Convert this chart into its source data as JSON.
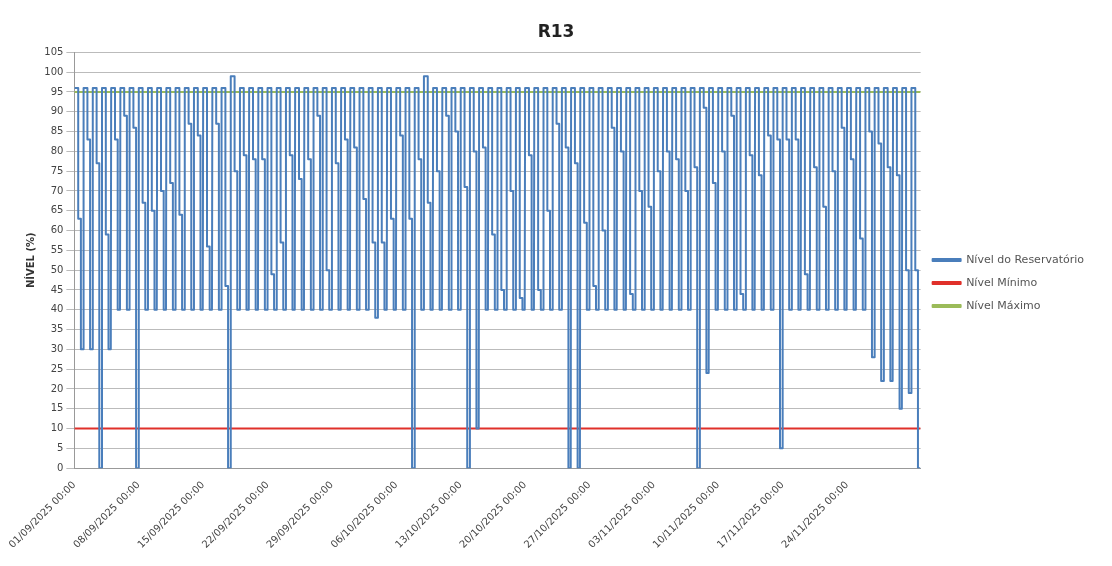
{
  "chart_data": {
    "type": "line",
    "title": "R13",
    "ylabel": "NÍVEL (%)",
    "xlim": [
      "2025-09-01",
      "2025-12-02"
    ],
    "ylim": [
      0,
      105
    ],
    "yticks": [
      0,
      5,
      10,
      15,
      20,
      25,
      30,
      35,
      40,
      45,
      50,
      55,
      60,
      65,
      70,
      75,
      80,
      85,
      90,
      95,
      100,
      105
    ],
    "xticks": [
      {
        "value": "2025-09-01",
        "label": "01/09/2025 00:00"
      },
      {
        "value": "2025-09-08",
        "label": "08/09/2025 00:00"
      },
      {
        "value": "2025-09-15",
        "label": "15/09/2025 00:00"
      },
      {
        "value": "2025-09-22",
        "label": "22/09/2025 00:00"
      },
      {
        "value": "2025-09-29",
        "label": "29/09/2025 00:00"
      },
      {
        "value": "2025-10-06",
        "label": "06/10/2025 00:00"
      },
      {
        "value": "2025-10-13",
        "label": "13/10/2025 00:00"
      },
      {
        "value": "2025-10-20",
        "label": "20/10/2025 00:00"
      },
      {
        "value": "2025-10-27",
        "label": "27/10/2025 00:00"
      },
      {
        "value": "2025-11-03",
        "label": "03/11/2025 00:00"
      },
      {
        "value": "2025-11-10",
        "label": "10/11/2025 00:00"
      },
      {
        "value": "2025-11-17",
        "label": "17/11/2025 00:00"
      },
      {
        "value": "2025-11-24",
        "label": "24/11/2025 00:00"
      }
    ],
    "grid": "y",
    "legend": "right",
    "marker": "none",
    "line_style": "solid",
    "series": [
      {
        "name": "Nível do Reservatório",
        "color": "#4a7ebb",
        "type": "line",
        "x": [
          "2025-09-01T00:00",
          "2025-09-01T10:00",
          "2025-09-01T10:00",
          "2025-09-01T17:00",
          "2025-09-01T17:00",
          "2025-09-01T23:00",
          "2025-09-02T00:00",
          "2025-09-02T10:00",
          "2025-09-02T10:00",
          "2025-09-02T17:00",
          "2025-09-02T17:00",
          "2025-09-02T23:00",
          "2025-09-03T00:00",
          "2025-09-03T10:00",
          "2025-09-03T10:00",
          "2025-09-03T17:00",
          "2025-09-03T17:00",
          "2025-09-03T23:00",
          "2025-09-04T00:00",
          "2025-09-04T10:00",
          "2025-09-04T10:00",
          "2025-09-04T17:00",
          "2025-09-04T17:00",
          "2025-09-04T23:00",
          "2025-09-05T00:00",
          "2025-09-05T10:00",
          "2025-09-05T10:00",
          "2025-09-05T17:00",
          "2025-09-05T17:00",
          "2025-09-05T23:00",
          "2025-09-06T00:00",
          "2025-09-06T10:00",
          "2025-09-06T10:00",
          "2025-09-06T17:00",
          "2025-09-06T17:00",
          "2025-09-06T23:00",
          "2025-09-07T00:00",
          "2025-09-07T10:00",
          "2025-09-07T10:00",
          "2025-09-07T17:00",
          "2025-09-07T17:00",
          "2025-09-07T23:00",
          "2025-09-08T00:00",
          "2025-09-08T10:00",
          "2025-09-08T10:00",
          "2025-09-08T17:00",
          "2025-09-08T17:00",
          "2025-09-08T23:00",
          "2025-09-09T00:00",
          "2025-09-09T10:00",
          "2025-09-09T10:00",
          "2025-09-09T17:00",
          "2025-09-09T17:00",
          "2025-09-09T23:00",
          "2025-09-10T00:00",
          "2025-09-10T10:00",
          "2025-09-10T10:00",
          "2025-09-10T17:00",
          "2025-09-10T17:00",
          "2025-09-10T23:00",
          "2025-09-11T00:00",
          "2025-09-11T10:00",
          "2025-09-11T10:00",
          "2025-09-11T17:00",
          "2025-09-11T17:00",
          "2025-09-11T23:00",
          "2025-09-12T00:00",
          "2025-09-12T10:00",
          "2025-09-12T10:00",
          "2025-09-12T17:00",
          "2025-09-12T17:00",
          "2025-09-12T23:00",
          "2025-09-13T00:00",
          "2025-09-13T10:00",
          "2025-09-13T10:00",
          "2025-09-13T17:00",
          "2025-09-13T17:00",
          "2025-09-13T23:00",
          "2025-09-14T00:00",
          "2025-09-14T10:00",
          "2025-09-14T10:00",
          "2025-09-14T17:00",
          "2025-09-14T17:00",
          "2025-09-14T23:00",
          "2025-09-15T00:00",
          "2025-09-15T10:00",
          "2025-09-15T10:00",
          "2025-09-15T17:00",
          "2025-09-15T17:00",
          "2025-09-15T23:00",
          "2025-09-16T00:00",
          "2025-09-16T10:00",
          "2025-09-16T10:00",
          "2025-09-16T17:00",
          "2025-09-16T17:00",
          "2025-09-16T23:00",
          "2025-09-17T00:00",
          "2025-09-17T10:00",
          "2025-09-17T10:00",
          "2025-09-17T17:00",
          "2025-09-17T17:00",
          "2025-09-17T23:00",
          "2025-09-18T00:00",
          "2025-09-18T10:00",
          "2025-09-18T10:00",
          "2025-09-18T17:00",
          "2025-09-18T17:00",
          "2025-09-18T23:00",
          "2025-09-19T00:00",
          "2025-09-19T10:00",
          "2025-09-19T10:00",
          "2025-09-19T17:00",
          "2025-09-19T17:00",
          "2025-09-19T23:00",
          "2025-09-20T00:00",
          "2025-09-20T10:00",
          "2025-09-20T10:00",
          "2025-09-20T17:00",
          "2025-09-20T17:00",
          "2025-09-20T23:00",
          "2025-09-21T00:00",
          "2025-09-21T10:00",
          "2025-09-21T10:00",
          "2025-09-21T17:00",
          "2025-09-21T17:00",
          "2025-09-21T23:00",
          "2025-09-22T00:00",
          "2025-09-22T10:00",
          "2025-09-22T10:00",
          "2025-09-22T17:00",
          "2025-09-22T17:00",
          "2025-09-22T23:00",
          "2025-09-23T00:00",
          "2025-09-23T10:00",
          "2025-09-23T10:00",
          "2025-09-23T17:00",
          "2025-09-23T17:00",
          "2025-09-23T23:00",
          "2025-09-24T00:00",
          "2025-09-24T10:00",
          "2025-09-24T10:00",
          "2025-09-24T17:00",
          "2025-09-24T17:00",
          "2025-09-24T23:00",
          "2025-09-25T00:00",
          "2025-09-25T10:00",
          "2025-09-25T10:00",
          "2025-09-25T17:00",
          "2025-09-25T17:00",
          "2025-09-25T23:00",
          "2025-09-26T00:00",
          "2025-09-26T10:00",
          "2025-09-26T10:00",
          "2025-09-26T17:00",
          "2025-09-26T17:00",
          "2025-09-26T23:00",
          "2025-09-27T00:00",
          "2025-09-27T10:00",
          "2025-09-27T10:00",
          "2025-09-27T17:00",
          "2025-09-27T17:00",
          "2025-09-27T23:00",
          "2025-09-28T00:00",
          "2025-09-28T10:00",
          "2025-09-28T10:00",
          "2025-09-28T17:00",
          "2025-09-28T17:00",
          "2025-09-28T23:00",
          "2025-09-29T00:00",
          "2025-09-29T10:00",
          "2025-09-29T10:00",
          "2025-09-29T17:00",
          "2025-09-29T17:00",
          "2025-09-29T23:00",
          "2025-09-30T00:00",
          "2025-09-30T10:00",
          "2025-09-30T10:00",
          "2025-09-30T17:00",
          "2025-09-30T17:00",
          "2025-09-30T23:00",
          "2025-10-01T00:00",
          "2025-10-01T10:00",
          "2025-10-01T10:00",
          "2025-10-01T17:00",
          "2025-10-01T17:00",
          "2025-10-01T23:00",
          "2025-10-02T00:00",
          "2025-10-02T10:00",
          "2025-10-02T10:00",
          "2025-10-02T17:00",
          "2025-10-02T17:00",
          "2025-10-02T23:00",
          "2025-10-03T00:00",
          "2025-10-03T10:00",
          "2025-10-03T10:00",
          "2025-10-03T17:00",
          "2025-10-03T17:00",
          "2025-10-03T23:00",
          "2025-10-04T00:00",
          "2025-10-04T10:00",
          "2025-10-04T10:00",
          "2025-10-04T17:00",
          "2025-10-04T17:00",
          "2025-10-04T23:00",
          "2025-10-05T00:00",
          "2025-10-05T10:00",
          "2025-10-05T10:00",
          "2025-10-05T17:00",
          "2025-10-05T17:00",
          "2025-10-05T23:00",
          "2025-10-06T00:00",
          "2025-10-06T10:00",
          "2025-10-06T10:00",
          "2025-10-06T17:00",
          "2025-10-06T17:00",
          "2025-10-06T23:00",
          "2025-10-07T00:00",
          "2025-10-07T10:00",
          "2025-10-07T10:00",
          "2025-10-07T17:00",
          "2025-10-07T17:00",
          "2025-10-07T23:00",
          "2025-10-08T00:00",
          "2025-10-08T10:00",
          "2025-10-08T10:00",
          "2025-10-08T17:00",
          "2025-10-08T17:00",
          "2025-10-08T23:00",
          "2025-10-09T00:00",
          "2025-10-09T10:00",
          "2025-10-09T10:00",
          "2025-10-09T17:00",
          "2025-10-09T17:00",
          "2025-10-09T23:00",
          "2025-10-10T00:00",
          "2025-10-10T10:00",
          "2025-10-10T10:00",
          "2025-10-10T17:00",
          "2025-10-10T17:00",
          "2025-10-10T23:00",
          "2025-10-11T00:00",
          "2025-10-11T10:00",
          "2025-10-11T10:00",
          "2025-10-11T17:00",
          "2025-10-11T17:00",
          "2025-10-11T23:00",
          "2025-10-12T00:00",
          "2025-10-12T10:00",
          "2025-10-12T10:00",
          "2025-10-12T17:00",
          "2025-10-12T17:00",
          "2025-10-12T23:00",
          "2025-10-13T00:00",
          "2025-10-13T10:00",
          "2025-10-13T10:00",
          "2025-10-13T17:00",
          "2025-10-13T17:00",
          "2025-10-13T23:00",
          "2025-10-14T00:00",
          "2025-10-14T10:00",
          "2025-10-14T10:00",
          "2025-10-14T17:00",
          "2025-10-14T17:00",
          "2025-10-14T23:00",
          "2025-10-15T00:00",
          "2025-10-15T10:00",
          "2025-10-15T10:00",
          "2025-10-15T17:00",
          "2025-10-15T17:00",
          "2025-10-15T23:00",
          "2025-10-16T00:00",
          "2025-10-16T10:00",
          "2025-10-16T10:00",
          "2025-10-16T17:00",
          "2025-10-16T17:00",
          "2025-10-16T23:00",
          "2025-10-17T00:00",
          "2025-10-17T10:00",
          "2025-10-17T10:00",
          "2025-10-17T17:00",
          "2025-10-17T17:00",
          "2025-10-17T23:00",
          "2025-10-18T00:00",
          "2025-10-18T10:00",
          "2025-10-18T10:00",
          "2025-10-18T17:00",
          "2025-10-18T17:00",
          "2025-10-18T23:00",
          "2025-10-19T00:00",
          "2025-10-19T10:00",
          "2025-10-19T10:00",
          "2025-10-19T17:00",
          "2025-10-19T17:00",
          "2025-10-19T23:00",
          "2025-10-20T00:00",
          "2025-10-20T10:00",
          "2025-10-20T10:00",
          "2025-10-20T17:00",
          "2025-10-20T17:00",
          "2025-10-20T23:00",
          "2025-10-21T00:00",
          "2025-10-21T10:00",
          "2025-10-21T10:00",
          "2025-10-21T17:00",
          "2025-10-21T17:00",
          "2025-10-21T23:00",
          "2025-10-22T00:00",
          "2025-10-22T10:00",
          "2025-10-22T10:00",
          "2025-10-22T17:00",
          "2025-10-22T17:00",
          "2025-10-22T23:00",
          "2025-10-23T00:00",
          "2025-10-23T10:00",
          "2025-10-23T10:00",
          "2025-10-23T17:00",
          "2025-10-23T17:00",
          "2025-10-23T23:00",
          "2025-10-24T00:00",
          "2025-10-24T10:00",
          "2025-10-24T10:00",
          "2025-10-24T17:00",
          "2025-10-24T17:00",
          "2025-10-24T23:00",
          "2025-10-25T00:00",
          "2025-10-25T10:00",
          "2025-10-25T10:00",
          "2025-10-25T17:00",
          "2025-10-25T17:00",
          "2025-10-25T23:00",
          "2025-10-26T00:00",
          "2025-10-26T10:00",
          "2025-10-26T10:00",
          "2025-10-26T17:00",
          "2025-10-26T17:00",
          "2025-10-26T23:00",
          "2025-10-27T00:00",
          "2025-10-27T10:00",
          "2025-10-27T10:00",
          "2025-10-27T17:00",
          "2025-10-27T17:00",
          "2025-10-27T23:00",
          "2025-10-28T00:00",
          "2025-10-28T10:00",
          "2025-10-28T10:00",
          "2025-10-28T17:00",
          "2025-10-28T17:00",
          "2025-10-28T23:00",
          "2025-10-29T00:00",
          "2025-10-29T10:00",
          "2025-10-29T10:00",
          "2025-10-29T17:00",
          "2025-10-29T17:00",
          "2025-10-29T23:00",
          "2025-10-30T00:00",
          "2025-10-30T10:00",
          "2025-10-30T10:00",
          "2025-10-30T17:00",
          "2025-10-30T17:00",
          "2025-10-30T23:00",
          "2025-10-31T00:00",
          "2025-10-31T10:00",
          "2025-10-31T10:00",
          "2025-10-31T17:00",
          "2025-10-31T17:00",
          "2025-10-31T23:00",
          "2025-11-01T00:00",
          "2025-11-01T10:00",
          "2025-11-01T10:00",
          "2025-11-01T17:00",
          "2025-11-01T17:00",
          "2025-11-01T23:00",
          "2025-11-02T00:00",
          "2025-11-02T10:00",
          "2025-11-02T10:00",
          "2025-11-02T17:00",
          "2025-11-02T17:00",
          "2025-11-02T23:00",
          "2025-11-03T00:00",
          "2025-11-03T10:00",
          "2025-11-03T10:00",
          "2025-11-03T17:00",
          "2025-11-03T17:00",
          "2025-11-03T23:00",
          "2025-11-04T00:00",
          "2025-11-04T10:00",
          "2025-11-04T10:00",
          "2025-11-04T17:00",
          "2025-11-04T17:00",
          "2025-11-04T23:00",
          "2025-11-05T00:00",
          "2025-11-05T10:00",
          "2025-11-05T10:00",
          "2025-11-05T17:00",
          "2025-11-05T17:00",
          "2025-11-05T23:00",
          "2025-11-06T00:00",
          "2025-11-06T10:00",
          "2025-11-06T10:00",
          "2025-11-06T17:00",
          "2025-11-06T17:00",
          "2025-11-06T23:00",
          "2025-11-07T00:00",
          "2025-11-07T10:00",
          "2025-11-07T10:00",
          "2025-11-07T17:00",
          "2025-11-07T17:00",
          "2025-11-07T23:00",
          "2025-11-08T00:00",
          "2025-11-08T10:00",
          "2025-11-08T10:00",
          "2025-11-08T17:00",
          "2025-11-08T17:00",
          "2025-11-08T23:00",
          "2025-11-09T00:00",
          "2025-11-09T10:00",
          "2025-11-09T10:00",
          "2025-11-09T17:00",
          "2025-11-09T17:00",
          "2025-11-09T23:00",
          "2025-11-10T00:00",
          "2025-11-10T10:00",
          "2025-11-10T10:00",
          "2025-11-10T17:00",
          "2025-11-10T17:00",
          "2025-11-10T23:00",
          "2025-11-11T00:00",
          "2025-11-11T10:00",
          "2025-11-11T10:00",
          "2025-11-11T17:00",
          "2025-11-11T17:00",
          "2025-11-11T23:00",
          "2025-11-12T00:00",
          "2025-11-12T10:00",
          "2025-11-12T10:00",
          "2025-11-12T17:00",
          "2025-11-12T17:00",
          "2025-11-12T23:00",
          "2025-11-13T00:00",
          "2025-11-13T10:00",
          "2025-11-13T10:00",
          "2025-11-13T17:00",
          "2025-11-13T17:00",
          "2025-11-13T23:00",
          "2025-11-14T00:00",
          "2025-11-14T10:00",
          "2025-11-14T10:00",
          "2025-11-14T17:00",
          "2025-11-14T17:00",
          "2025-11-14T23:00",
          "2025-11-15T00:00",
          "2025-11-15T10:00",
          "2025-11-15T10:00",
          "2025-11-15T17:00",
          "2025-11-15T17:00",
          "2025-11-15T23:00",
          "2025-11-16T00:00",
          "2025-11-16T10:00",
          "2025-11-16T10:00",
          "2025-11-16T17:00",
          "2025-11-16T17:00",
          "2025-11-16T23:00",
          "2025-11-17T00:00",
          "2025-11-17T10:00",
          "2025-11-17T10:00",
          "2025-11-17T17:00",
          "2025-11-17T17:00",
          "2025-11-17T23:00",
          "2025-11-18T00:00",
          "2025-11-18T10:00",
          "2025-11-18T10:00",
          "2025-11-18T17:00",
          "2025-11-18T17:00",
          "2025-11-18T23:00",
          "2025-11-19T00:00",
          "2025-11-19T10:00",
          "2025-11-19T10:00",
          "2025-11-19T17:00",
          "2025-11-19T17:00",
          "2025-11-19T23:00",
          "2025-11-20T00:00",
          "2025-11-20T10:00",
          "2025-11-20T10:00",
          "2025-11-20T17:00",
          "2025-11-20T17:00",
          "2025-11-20T23:00",
          "2025-11-21T00:00",
          "2025-11-21T10:00",
          "2025-11-21T10:00",
          "2025-11-21T17:00",
          "2025-11-21T17:00",
          "2025-11-21T23:00",
          "2025-11-22T00:00",
          "2025-11-22T10:00",
          "2025-11-22T10:00",
          "2025-11-22T17:00",
          "2025-11-22T17:00",
          "2025-11-22T23:00",
          "2025-11-23T00:00",
          "2025-11-23T10:00",
          "2025-11-23T10:00",
          "2025-11-23T17:00",
          "2025-11-23T17:00",
          "2025-11-23T23:00",
          "2025-11-24T00:00",
          "2025-11-24T10:00",
          "2025-11-24T10:00",
          "2025-11-24T17:00",
          "2025-11-24T17:00",
          "2025-11-24T23:00",
          "2025-11-25T00:00",
          "2025-11-25T10:00",
          "2025-11-25T10:00",
          "2025-11-25T17:00",
          "2025-11-25T17:00",
          "2025-11-25T23:00",
          "2025-11-26T00:00",
          "2025-11-26T10:00",
          "2025-11-26T10:00",
          "2025-11-26T17:00",
          "2025-11-26T17:00",
          "2025-11-26T23:00",
          "2025-11-27T00:00",
          "2025-11-27T10:00",
          "2025-11-27T10:00",
          "2025-11-27T17:00",
          "2025-11-27T17:00",
          "2025-11-27T23:00",
          "2025-11-28T00:00",
          "2025-11-28T10:00",
          "2025-11-28T10:00",
          "2025-11-28T17:00",
          "2025-11-28T17:00",
          "2025-11-28T23:00",
          "2025-11-29T00:00",
          "2025-11-29T10:00",
          "2025-11-29T10:00",
          "2025-11-29T17:00",
          "2025-11-29T17:00",
          "2025-11-29T23:00",
          "2025-11-30T00:00",
          "2025-11-30T10:00",
          "2025-11-30T10:00",
          "2025-11-30T17:00",
          "2025-11-30T17:00",
          "2025-11-30T23:00",
          "2025-12-01T00:00",
          "2025-12-01T10:00",
          "2025-12-01T10:00",
          "2025-12-01T17:00",
          "2025-12-01T17:00",
          "2025-12-01T23:00"
        ],
        "values": [
          96,
          96,
          63,
          63,
          30,
          30,
          96,
          96,
          83,
          83,
          30,
          30,
          96,
          96,
          77,
          77,
          0,
          0,
          96,
          96,
          59,
          59,
          30,
          30,
          96,
          96,
          83,
          83,
          40,
          40,
          96,
          96,
          89,
          89,
          40,
          40,
          96,
          96,
          86,
          86,
          0,
          0,
          96,
          96,
          67,
          67,
          40,
          40,
          96,
          96,
          65,
          65,
          40,
          40,
          96,
          96,
          70,
          70,
          40,
          40,
          96,
          96,
          72,
          72,
          40,
          40,
          96,
          96,
          64,
          64,
          40,
          40,
          96,
          96,
          87,
          87,
          40,
          40,
          96,
          96,
          84,
          84,
          40,
          40,
          96,
          96,
          56,
          56,
          40,
          40,
          96,
          96,
          87,
          87,
          40,
          40,
          96,
          96,
          46,
          46,
          0,
          0,
          99,
          99,
          75,
          75,
          40,
          40,
          96,
          96,
          79,
          79,
          40,
          40,
          96,
          96,
          78,
          78,
          40,
          40,
          96,
          96,
          78,
          78,
          40,
          40,
          96,
          96,
          49,
          49,
          40,
          40,
          96,
          96,
          57,
          57,
          40,
          40,
          96,
          96,
          79,
          79,
          40,
          40,
          96,
          96,
          73,
          73,
          40,
          40,
          96,
          96,
          78,
          78,
          40,
          40,
          96,
          96,
          89,
          89,
          40,
          40,
          96,
          96,
          50,
          50,
          40,
          40,
          96,
          96,
          77,
          77,
          40,
          40,
          96,
          96,
          83,
          83,
          40,
          40,
          96,
          96,
          81,
          81,
          40,
          40,
          96,
          96,
          68,
          68,
          40,
          40,
          96,
          96,
          57,
          57,
          38,
          38,
          96,
          96,
          57,
          57,
          40,
          40,
          96,
          96,
          63,
          63,
          40,
          40,
          96,
          96,
          84,
          84,
          40,
          40,
          96,
          96,
          63,
          63,
          0,
          0,
          96,
          96,
          78,
          78,
          40,
          40,
          99,
          99,
          67,
          67,
          40,
          40,
          96,
          96,
          75,
          75,
          40,
          40,
          96,
          96,
          89,
          89,
          40,
          40,
          96,
          96,
          85,
          85,
          40,
          40,
          96,
          96,
          71,
          71,
          0,
          0,
          96,
          96,
          80,
          80,
          10,
          10,
          96,
          96,
          81,
          81,
          40,
          40,
          96,
          96,
          59,
          59,
          40,
          40,
          96,
          96,
          45,
          45,
          40,
          40,
          96,
          96,
          70,
          70,
          40,
          40,
          96,
          96,
          43,
          43,
          40,
          40,
          96,
          96,
          79,
          79,
          40,
          40,
          96,
          96,
          45,
          45,
          40,
          40,
          96,
          96,
          65,
          65,
          40,
          40,
          96,
          96,
          87,
          87,
          40,
          40,
          96,
          96,
          81,
          81,
          0,
          0,
          96,
          96,
          77,
          77,
          0,
          0,
          96,
          96,
          62,
          62,
          40,
          40,
          96,
          96,
          46,
          46,
          40,
          40,
          96,
          96,
          60,
          60,
          40,
          40,
          96,
          96,
          86,
          86,
          40,
          40,
          96,
          96,
          80,
          80,
          40,
          40,
          96,
          96,
          44,
          44,
          40,
          40,
          96,
          96,
          70,
          70,
          40,
          40,
          96,
          96,
          66,
          66,
          40,
          40,
          96,
          96,
          75,
          75,
          40,
          40,
          96,
          96,
          80,
          80,
          40,
          40,
          96,
          96,
          78,
          78,
          40,
          40,
          96,
          96,
          70,
          70,
          40,
          40,
          96,
          96,
          76,
          76,
          0,
          0,
          96,
          96,
          91,
          91,
          24,
          24,
          96,
          96,
          72,
          72,
          40,
          40,
          96,
          96,
          80,
          80,
          40,
          40,
          96,
          96,
          89,
          89,
          40,
          40,
          96,
          96,
          44,
          44,
          40,
          40,
          96,
          96,
          79,
          79,
          40,
          40,
          96,
          96,
          74,
          74,
          40,
          40,
          96,
          96,
          84,
          84,
          40,
          40,
          96,
          96,
          83,
          83,
          5,
          5,
          96,
          96,
          83,
          83,
          40,
          40,
          96,
          96,
          83,
          83,
          40,
          40,
          96,
          96,
          49,
          49,
          40,
          40,
          96,
          96,
          76,
          76,
          40,
          40,
          96,
          96,
          66,
          66,
          40,
          40,
          96,
          96,
          75,
          75,
          40,
          40,
          96,
          96,
          86,
          86,
          40,
          40,
          96,
          96,
          78,
          78,
          40,
          40,
          96,
          96,
          58,
          58,
          40,
          40,
          96,
          96,
          85,
          85,
          28,
          28,
          96,
          96,
          82,
          82,
          22,
          22,
          96,
          96,
          76,
          76,
          22,
          22,
          96,
          96,
          74,
          74,
          15,
          15,
          96,
          96,
          50,
          50,
          19,
          19,
          96,
          96,
          50,
          50,
          0,
          0
        ]
      },
      {
        "name": "Nível Mínimo",
        "color": "#e0302a",
        "x": [
          "2025-09-01",
          "2025-12-02"
        ],
        "values": [
          10,
          10
        ]
      },
      {
        "name": "Nível Máximo",
        "color": "#9bbb59",
        "x": [
          "2025-09-01",
          "2025-12-02"
        ],
        "values": [
          95,
          95
        ]
      }
    ]
  }
}
